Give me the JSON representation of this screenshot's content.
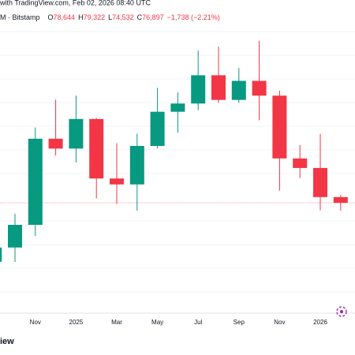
{
  "header": {
    "source": "with TradingView.com, Feb 02, 2026 08:40 UTC",
    "symbol": "M · Bitstamp",
    "ohlc": [
      {
        "label": "O",
        "value": "78,644"
      },
      {
        "label": "H",
        "value": "79,322"
      },
      {
        "label": "L",
        "value": "74,532"
      },
      {
        "label": "C",
        "value": "76,897"
      }
    ],
    "change": "−1,738 (−2.21%)"
  },
  "brand": "iew",
  "chart_data": {
    "type": "candlestick",
    "categories": [
      null,
      null,
      "Nov",
      null,
      "2025",
      null,
      "Mar",
      null,
      "May",
      null,
      "Jul",
      null,
      "Sep",
      null,
      "Nov",
      null,
      "2026",
      null
    ],
    "open": [
      58970,
      63300,
      70200,
      96400,
      93400,
      102400,
      84300,
      82500,
      94200,
      104600,
      107100,
      115700,
      108200,
      114000,
      109500,
      90400,
      87500,
      78644
    ],
    "high": [
      66000,
      73600,
      99800,
      108300,
      109500,
      102700,
      95000,
      97900,
      111900,
      110500,
      123200,
      124400,
      117900,
      126200,
      111000,
      94500,
      97900,
      79322
    ],
    "low": [
      52500,
      58900,
      66800,
      91300,
      89200,
      78200,
      76600,
      74500,
      93400,
      98200,
      105100,
      107300,
      107300,
      102000,
      80600,
      84400,
      74600,
      74532
    ],
    "close": [
      63300,
      70200,
      96400,
      93400,
      102400,
      84300,
      82500,
      94200,
      104600,
      107100,
      115700,
      108200,
      114000,
      109500,
      90400,
      87500,
      78644,
      76897
    ],
    "up_color": "#089981",
    "down_color": "#f23645",
    "price_line_color": "#f7a1a9",
    "ylim": [
      43800,
      138600
    ]
  }
}
